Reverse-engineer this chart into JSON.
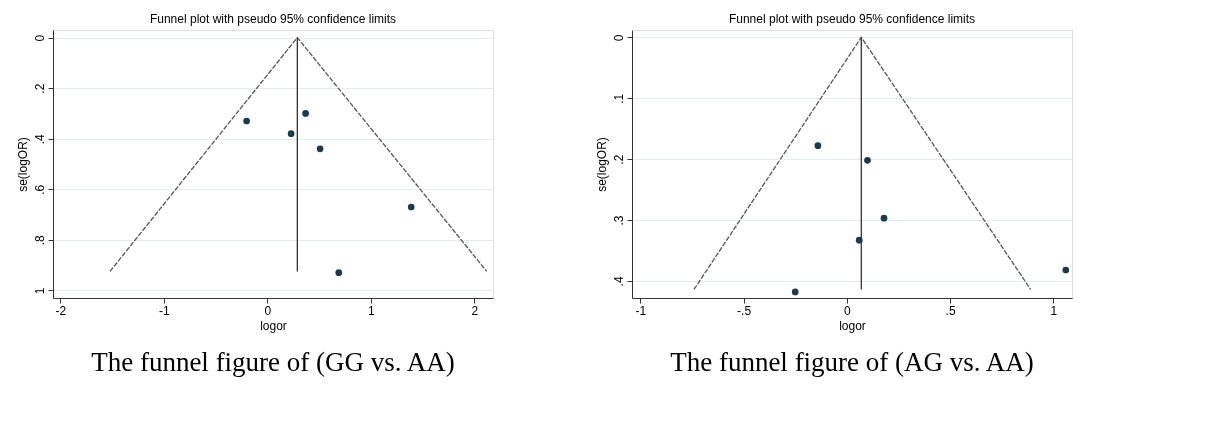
{
  "chart_data": [
    {
      "type": "scatter",
      "title": "Funnel plot with pseudo 95% confidence limits",
      "xlabel": "logor",
      "ylabel": "se(logOR)",
      "xlim": [
        -2.07,
        2.18
      ],
      "ylim": [
        1.03,
        -0.03
      ],
      "xticks": [
        -2,
        -1,
        0,
        1,
        2
      ],
      "yticks": [
        0,
        {
          "value": 0.2,
          "label": ".2"
        },
        {
          "value": 0.4,
          "label": ".4"
        },
        {
          "value": 0.6,
          "label": ".6"
        },
        {
          "value": 0.8,
          "label": ".8"
        },
        1
      ],
      "grid": "y",
      "series": [
        {
          "color": "#1b3a4b",
          "marker": "circle",
          "x": [
            -0.2,
            0.37,
            0.23,
            0.51,
            1.39,
            0.69
          ],
          "values": [
            0.33,
            0.3,
            0.38,
            0.44,
            0.67,
            0.93
          ]
        },
        {
          "type": "line",
          "color": "#555555",
          "line_style": "dashed",
          "marker": "none",
          "x": [
            -1.52,
            0.29,
            2.12
          ],
          "values": [
            0.925,
            0,
            0.925
          ]
        },
        {
          "type": "line",
          "color": "#333333",
          "line_style": "solid",
          "marker": "none",
          "x": [
            0.29,
            0.29
          ],
          "values": [
            0,
            0.925
          ]
        }
      ],
      "annotations": [
        "The funnel figure of (GG vs. AA)"
      ]
    },
    {
      "type": "scatter",
      "title": "Funnel plot with pseudo 95% confidence limits",
      "xlabel": "logor",
      "ylabel": "se(logOR)",
      "xlim": [
        -1.04,
        1.09
      ],
      "ylim": [
        0.428,
        -0.012
      ],
      "xticks": [
        -1,
        {
          "value": -0.5,
          "label": "-.5"
        },
        0,
        {
          "value": 0.5,
          "label": ".5"
        },
        1
      ],
      "yticks": [
        0,
        {
          "value": 0.1,
          "label": ".1"
        },
        {
          "value": 0.2,
          "label": ".2"
        },
        {
          "value": 0.3,
          "label": ".3"
        },
        {
          "value": 0.4,
          "label": ".4"
        }
      ],
      "grid": "y",
      "series": [
        {
          "color": "#1b3a4b",
          "marker": "circle",
          "x": [
            -0.14,
            0.1,
            0.18,
            0.06,
            1.06,
            -0.25
          ],
          "values": [
            0.178,
            0.202,
            0.297,
            0.333,
            0.382,
            0.418
          ]
        },
        {
          "type": "line",
          "color": "#555555",
          "line_style": "dashed",
          "marker": "none",
          "x": [
            -0.74,
            0.07,
            0.89
          ],
          "values": [
            0.414,
            0,
            0.414
          ]
        },
        {
          "type": "line",
          "color": "#333333",
          "line_style": "solid",
          "marker": "none",
          "x": [
            0.07,
            0.07
          ],
          "values": [
            0,
            0.414
          ]
        }
      ],
      "annotations": [
        "The funnel figure of (AG vs. AA)"
      ]
    }
  ]
}
